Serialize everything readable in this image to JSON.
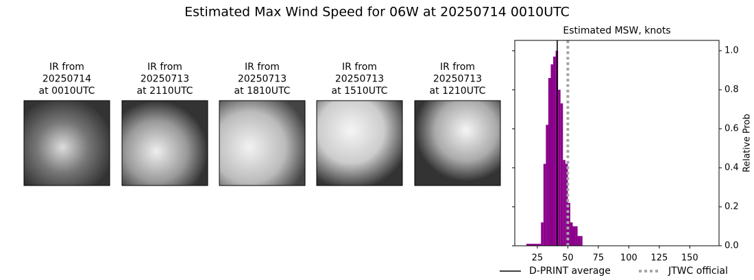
{
  "title": "Estimated Max Wind Speed for 06W at 20250714 0010UTC",
  "panels": [
    {
      "caption": [
        "IR from",
        "20250714",
        "at 0010UTC"
      ]
    },
    {
      "caption": [
        "IR from",
        "20250713",
        "at 2110UTC"
      ]
    },
    {
      "caption": [
        "IR from",
        "20250713",
        "at 1810UTC"
      ]
    },
    {
      "caption": [
        "IR from",
        "20250713",
        "at 1510UTC"
      ]
    },
    {
      "caption": [
        "IR from",
        "20250713",
        "at 1210UTC"
      ]
    }
  ],
  "chart_data": {
    "type": "histogram",
    "title": "Estimated MSW, knots",
    "y_label": "Relative Prob",
    "bins": [
      16,
      18,
      20,
      22,
      24,
      26,
      28,
      30,
      32,
      34,
      36,
      38,
      40,
      42,
      44,
      46,
      48,
      50,
      52,
      54,
      56,
      58,
      60,
      62
    ],
    "values": [
      0.01,
      0.01,
      0.01,
      0.01,
      0.01,
      0.01,
      0.12,
      0.42,
      0.62,
      0.86,
      0.93,
      0.97,
      1.0,
      0.8,
      0.73,
      0.44,
      0.42,
      0.22,
      0.12,
      0.1,
      0.1,
      0.05,
      0.05
    ],
    "color": "#8b008b",
    "xlim": [
      6.5,
      174
    ],
    "ylim": [
      0,
      1.053
    ],
    "xticks": [
      25,
      50,
      75,
      100,
      125,
      150
    ],
    "yticks": [
      {
        "value": 0,
        "label": "0.0"
      },
      {
        "value": 0.2,
        "label": "0.2"
      },
      {
        "value": 0.4,
        "label": "0.4"
      },
      {
        "value": 0.6,
        "label": "0.6"
      },
      {
        "value": 0.8,
        "label": "0.8"
      },
      {
        "value": 1,
        "label": "1.0"
      }
    ],
    "y_axis_side": "right",
    "lines": [
      {
        "name": "D-PRINT average",
        "value": 41.3,
        "color": "#000000",
        "style": "solid"
      },
      {
        "name": "JTWC official",
        "value": 50,
        "color": "#a6a6a6",
        "style": "dotted"
      }
    ],
    "legend": "below"
  }
}
